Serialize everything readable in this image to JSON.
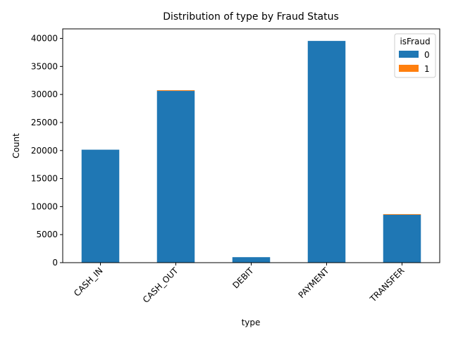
{
  "chart_data": {
    "type": "bar",
    "stacked": true,
    "title": "Distribution of type by Fraud Status",
    "xlabel": "type",
    "ylabel": "Count",
    "categories": [
      "CASH_IN",
      "CASH_OUT",
      "DEBIT",
      "PAYMENT",
      "TRANSFER"
    ],
    "series": [
      {
        "name": "0",
        "color": "#1f77b4",
        "values": [
          20150,
          30640,
          980,
          39550,
          8540
        ]
      },
      {
        "name": "1",
        "color": "#ff7f0e",
        "values": [
          0,
          120,
          0,
          0,
          110
        ]
      }
    ],
    "ylim": [
      0,
      41700
    ],
    "yticks": [
      0,
      5000,
      10000,
      15000,
      20000,
      25000,
      30000,
      35000,
      40000
    ],
    "grid": false,
    "legend": {
      "title": "isFraud",
      "position": "top-right"
    }
  }
}
